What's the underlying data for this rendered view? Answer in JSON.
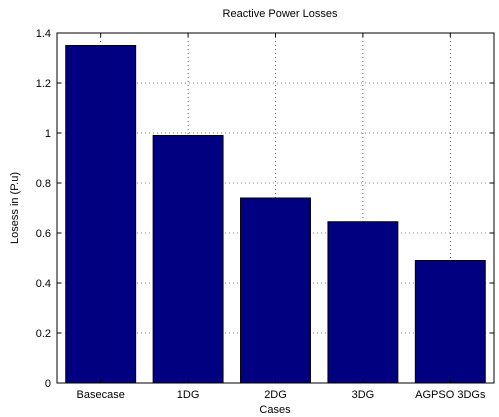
{
  "chart_data": {
    "type": "bar",
    "title": "Reactive Power Losses",
    "xlabel": "Cases",
    "ylabel": "Losess in (P.u)",
    "categories": [
      "Basecase",
      "1DG",
      "2DG",
      "3DG",
      "AGPSO 3DGs"
    ],
    "values": [
      1.35,
      0.99,
      0.74,
      0.645,
      0.49
    ],
    "ylim": [
      0,
      1.4
    ],
    "yticks": [
      "0",
      "0.2",
      "0.4",
      "0.6",
      "0.8",
      "1",
      "1.2",
      "1.4"
    ],
    "grid": true,
    "bar_color": "#000080",
    "legend": "none"
  }
}
